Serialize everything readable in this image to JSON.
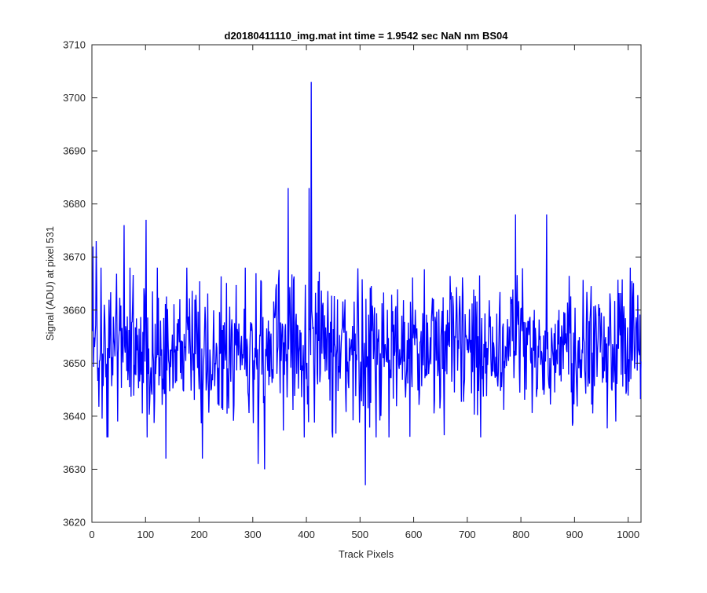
{
  "chart_data": {
    "type": "line",
    "title": "d20180411110_img.mat int time = 1.9542 sec  NaN nm BS04",
    "xlabel": "Track Pixels",
    "ylabel": "Signal (ADU) at pixel 531",
    "xlim": [
      0,
      1024
    ],
    "ylim": [
      3620,
      3710
    ],
    "xticks": [
      0,
      100,
      200,
      300,
      400,
      500,
      600,
      700,
      800,
      900,
      1000
    ],
    "yticks": [
      3620,
      3630,
      3640,
      3650,
      3660,
      3670,
      3680,
      3690,
      3700,
      3710
    ],
    "grid": false,
    "line_color": "#0000ff",
    "series": [
      {
        "x_start": 1,
        "x_step": 1,
        "count": 1024,
        "mean": 3653,
        "std": 6.5,
        "notable_points": [
          {
            "x": 2,
            "y": 3672
          },
          {
            "x": 8,
            "y": 3673
          },
          {
            "x": 30,
            "y": 3636
          },
          {
            "x": 48,
            "y": 3639
          },
          {
            "x": 60,
            "y": 3676
          },
          {
            "x": 101,
            "y": 3677
          },
          {
            "x": 138,
            "y": 3632
          },
          {
            "x": 206,
            "y": 3632
          },
          {
            "x": 310,
            "y": 3631
          },
          {
            "x": 322,
            "y": 3630
          },
          {
            "x": 366,
            "y": 3683
          },
          {
            "x": 405,
            "y": 3683
          },
          {
            "x": 409,
            "y": 3703
          },
          {
            "x": 510,
            "y": 3627
          },
          {
            "x": 790,
            "y": 3678
          },
          {
            "x": 848,
            "y": 3678
          }
        ]
      }
    ]
  }
}
